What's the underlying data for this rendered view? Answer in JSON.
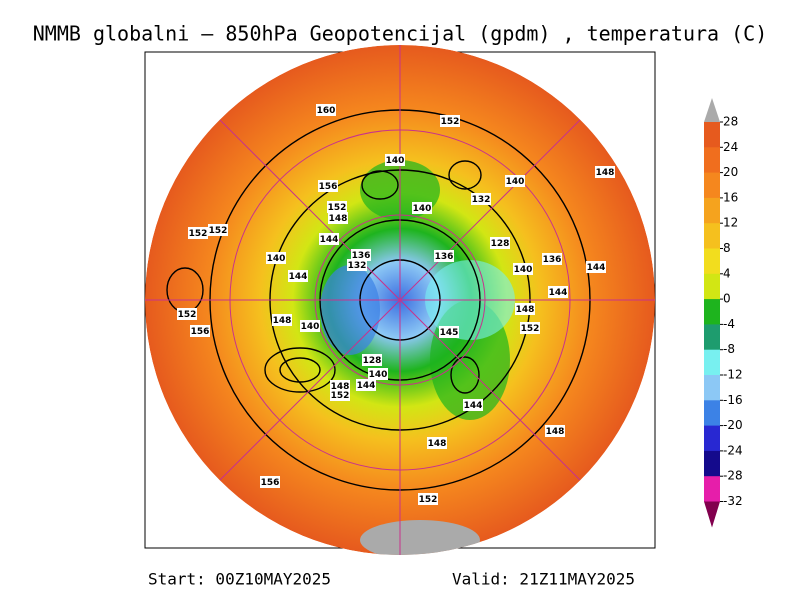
{
  "title": "NMMB globalni – 850hPa Geopotencijal (gpdm) , temperatura (C)",
  "start": "Start: 00Z10MAY2025",
  "valid": "Valid: 21Z11MAY2025",
  "colorbar": {
    "ticks": [
      28,
      24,
      20,
      16,
      12,
      8,
      4,
      0,
      -4,
      -8,
      -12,
      -16,
      -20,
      -24,
      -28,
      -32
    ],
    "colors": [
      "#e65a1e",
      "#f06e1e",
      "#f5871e",
      "#f5a31e",
      "#f5c01e",
      "#f2dd1e",
      "#d2e614",
      "#1eb41e",
      "#1e9c6e",
      "#78f0f0",
      "#8cc8f5",
      "#3c82e6",
      "#2828d2",
      "#140a8c",
      "#e61eaa"
    ],
    "over_color": "#aaaaaa",
    "under_color": "#82004e"
  },
  "contour_labels": [
    160,
    152,
    148,
    140,
    140,
    156,
    152,
    148,
    140,
    132,
    152,
    152,
    144,
    128,
    140,
    136,
    132,
    136,
    140,
    136,
    144,
    144,
    144,
    152,
    148,
    156,
    148,
    140,
    152,
    145,
    128,
    140,
    144,
    148,
    152,
    144,
    148,
    148,
    156,
    152
  ]
}
